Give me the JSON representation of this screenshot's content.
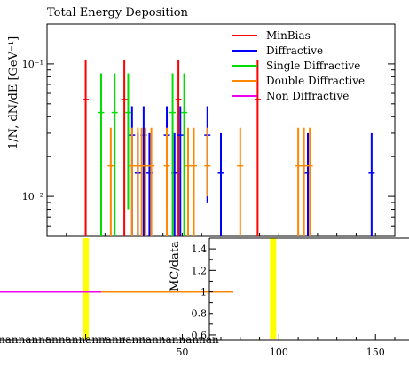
{
  "chart_data": [
    {
      "id": "main",
      "type": "scatter",
      "title": "Total Energy Deposition",
      "ylabel": "1/N, dN/dE [GeV⁻¹]",
      "yscale": "log",
      "ylim": [
        0.005,
        0.2
      ],
      "xlim": [
        -20,
        160
      ],
      "y_ticks": [
        {
          "value": 0.01,
          "label": "10⁻²"
        },
        {
          "value": 0.1,
          "label": "10⁻¹"
        }
      ],
      "legend_position": "top-right",
      "series": [
        {
          "name": "MinBias",
          "color": "#ff0000",
          "points": [
            {
              "x": 0,
              "y": 0.054,
              "lo": 0.005,
              "hi": 0.107
            },
            {
              "x": 20,
              "y": 0.054,
              "lo": 0.005,
              "hi": 0.107
            },
            {
              "x": 48,
              "y": 0.054,
              "lo": 0.005,
              "hi": 0.107
            },
            {
              "x": 89,
              "y": 0.054,
              "lo": 0.005,
              "hi": 0.107
            }
          ]
        },
        {
          "name": "Diffractive",
          "color": "#0000ff",
          "points": [
            {
              "x": 24,
              "y": 0.029,
              "lo": 0.005,
              "hi": 0.048
            },
            {
              "x": 27,
              "y": 0.015,
              "lo": 0.005,
              "hi": 0.03
            },
            {
              "x": 30,
              "y": 0.029,
              "lo": 0.005,
              "hi": 0.048
            },
            {
              "x": 33,
              "y": 0.015,
              "lo": 0.005,
              "hi": 0.03
            },
            {
              "x": 42,
              "y": 0.029,
              "lo": 0.009,
              "hi": 0.048
            },
            {
              "x": 46,
              "y": 0.015,
              "lo": 0.005,
              "hi": 0.03
            },
            {
              "x": 49,
              "y": 0.029,
              "lo": 0.005,
              "hi": 0.048
            },
            {
              "x": 63,
              "y": 0.029,
              "lo": 0.009,
              "hi": 0.048
            },
            {
              "x": 70,
              "y": 0.015,
              "lo": 0.005,
              "hi": 0.03
            },
            {
              "x": 115,
              "y": 0.015,
              "lo": 0.005,
              "hi": 0.03
            },
            {
              "x": 148,
              "y": 0.015,
              "lo": 0.005,
              "hi": 0.03
            }
          ]
        },
        {
          "name": "Single Diffractive",
          "color": "#00dd00",
          "points": [
            {
              "x": 8,
              "y": 0.043,
              "lo": 0.005,
              "hi": 0.085
            },
            {
              "x": 15,
              "y": 0.043,
              "lo": 0.005,
              "hi": 0.085
            },
            {
              "x": 22,
              "y": 0.043,
              "lo": 0.008,
              "hi": 0.085
            },
            {
              "x": 45,
              "y": 0.043,
              "lo": 0.005,
              "hi": 0.085
            },
            {
              "x": 51,
              "y": 0.043,
              "lo": 0.005,
              "hi": 0.085
            }
          ]
        },
        {
          "name": "Double Diffractive",
          "color": "#ff8800",
          "points": [
            {
              "x": 13,
              "y": 0.017,
              "lo": 0.005,
              "hi": 0.033
            },
            {
              "x": 24,
              "y": 0.017,
              "lo": 0.005,
              "hi": 0.033
            },
            {
              "x": 27,
              "y": 0.017,
              "lo": 0.005,
              "hi": 0.033
            },
            {
              "x": 29,
              "y": 0.017,
              "lo": 0.005,
              "hi": 0.033
            },
            {
              "x": 31,
              "y": 0.017,
              "lo": 0.005,
              "hi": 0.033
            },
            {
              "x": 34,
              "y": 0.017,
              "lo": 0.005,
              "hi": 0.033
            },
            {
              "x": 42,
              "y": 0.017,
              "lo": 0.005,
              "hi": 0.033
            },
            {
              "x": 53,
              "y": 0.017,
              "lo": 0.005,
              "hi": 0.033
            },
            {
              "x": 56,
              "y": 0.017,
              "lo": 0.005,
              "hi": 0.033
            },
            {
              "x": 63,
              "y": 0.017,
              "lo": 0.01,
              "hi": 0.033
            },
            {
              "x": 80,
              "y": 0.017,
              "lo": 0.005,
              "hi": 0.033
            },
            {
              "x": 110,
              "y": 0.017,
              "lo": 0.005,
              "hi": 0.033
            },
            {
              "x": 113,
              "y": 0.017,
              "lo": 0.005,
              "hi": 0.033
            },
            {
              "x": 116,
              "y": 0.017,
              "lo": 0.005,
              "hi": 0.033
            }
          ]
        },
        {
          "name": "Non Diffractive",
          "color": "#ee00ee",
          "points": []
        }
      ]
    },
    {
      "id": "ratio",
      "type": "line",
      "ylabel": "MC/data",
      "ylim": [
        0.55,
        1.5
      ],
      "xlim": [
        -20,
        160
      ],
      "y_ticks": [
        {
          "value": 0.6,
          "label": "0.6"
        },
        {
          "value": 0.8,
          "label": "0.8"
        },
        {
          "value": 1.0,
          "label": "1"
        },
        {
          "value": 1.2,
          "label": "1.2"
        },
        {
          "value": 1.4,
          "label": "1.4"
        }
      ],
      "x_ticks": [
        {
          "value": 50,
          "label": "50"
        },
        {
          "value": 100,
          "label": "100"
        },
        {
          "value": 150,
          "label": "150"
        }
      ],
      "reference": 1.0,
      "bands": [
        {
          "color": "#ffff00",
          "x": 0
        },
        {
          "color": "#ffff00",
          "x": 97
        }
      ],
      "lines": [
        {
          "color": "#ee00ee",
          "segments": [
            [
              -50,
              8
            ],
            [
              110,
              160
            ]
          ]
        },
        {
          "color": "#ff8800",
          "segments": [
            [
              8,
              110
            ]
          ]
        }
      ],
      "axis_overflow_text": "nannannannannannannannannannannan"
    }
  ]
}
